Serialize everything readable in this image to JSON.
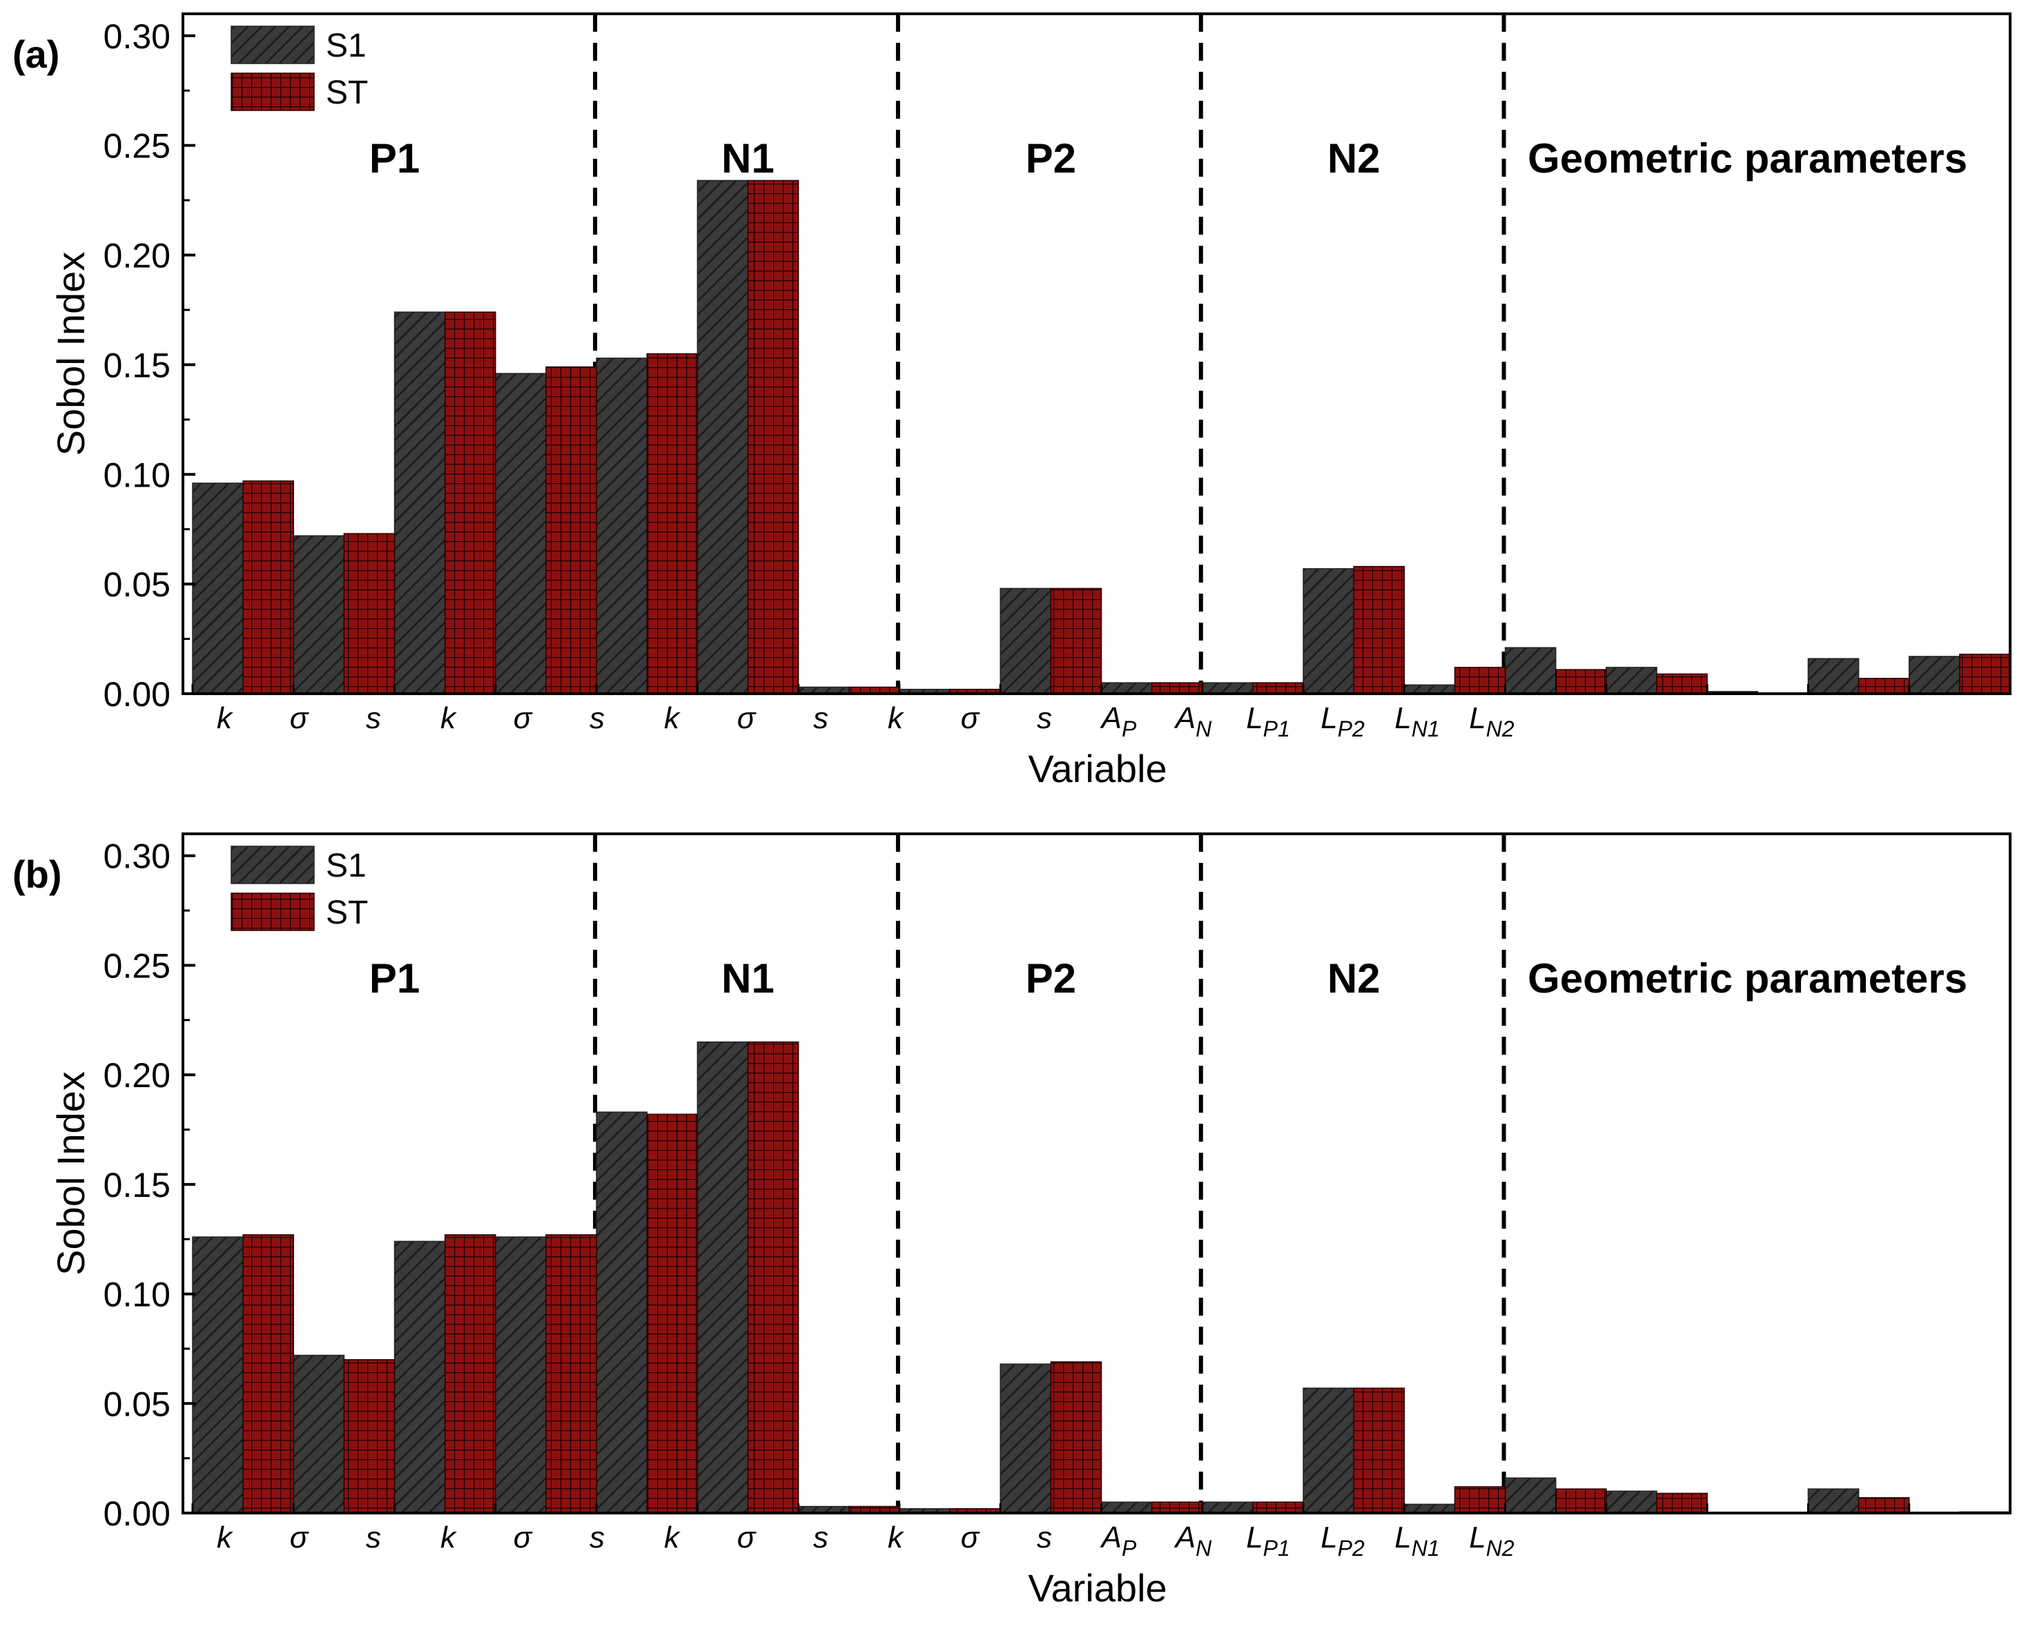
{
  "figure": {
    "legend": {
      "s1_label": "S1",
      "st_label": "ST"
    },
    "colors": {
      "s1": "#3a3a3a",
      "st": "#8c1010",
      "axis": "#000000"
    },
    "group_labels": [
      "P1",
      "N1",
      "P2",
      "N2",
      "Geometric parameters"
    ],
    "x_tick_labels": [
      {
        "main": "k",
        "sub": ""
      },
      {
        "main": "σ",
        "sub": ""
      },
      {
        "main": "s",
        "sub": ""
      },
      {
        "main": "k",
        "sub": ""
      },
      {
        "main": "σ",
        "sub": ""
      },
      {
        "main": "s",
        "sub": ""
      },
      {
        "main": "k",
        "sub": ""
      },
      {
        "main": "σ",
        "sub": ""
      },
      {
        "main": "s",
        "sub": ""
      },
      {
        "main": "k",
        "sub": ""
      },
      {
        "main": "σ",
        "sub": ""
      },
      {
        "main": "s",
        "sub": ""
      },
      {
        "main": "A",
        "sub": "P"
      },
      {
        "main": "A",
        "sub": "N"
      },
      {
        "main": "L",
        "sub": "P1"
      },
      {
        "main": "L",
        "sub": "P2"
      },
      {
        "main": "L",
        "sub": "N1"
      },
      {
        "main": "L",
        "sub": "N2"
      }
    ]
  },
  "chart_data": [
    {
      "type": "bar",
      "panel_label": "(a)",
      "xlabel": "Variable",
      "ylabel": "Sobol Index",
      "ylim": [
        0,
        0.31
      ],
      "yticks": [
        "0.00",
        "0.05",
        "0.10",
        "0.15",
        "0.20",
        "0.25",
        "0.30"
      ],
      "series": [
        {
          "name": "S1",
          "values": [
            0.096,
            0.072,
            0.174,
            0.146,
            0.153,
            0.234,
            0.003,
            0.002,
            0.048,
            0.005,
            0.005,
            0.057,
            0.004,
            0.021,
            0.012,
            0.001,
            0.016,
            0.017
          ]
        },
        {
          "name": "ST",
          "values": [
            0.097,
            0.073,
            0.174,
            0.149,
            0.155,
            0.234,
            0.003,
            0.002,
            0.048,
            0.005,
            0.005,
            0.058,
            0.012,
            0.011,
            0.009,
            0.0,
            0.007,
            0.018
          ]
        }
      ]
    },
    {
      "type": "bar",
      "panel_label": "(b)",
      "xlabel": "Variable",
      "ylabel": "Sobol Index",
      "ylim": [
        0,
        0.31
      ],
      "yticks": [
        "0.00",
        "0.05",
        "0.10",
        "0.15",
        "0.20",
        "0.25",
        "0.30"
      ],
      "series": [
        {
          "name": "S1",
          "values": [
            0.126,
            0.072,
            0.124,
            0.126,
            0.183,
            0.215,
            0.003,
            0.002,
            0.068,
            0.005,
            0.005,
            0.057,
            0.004,
            0.016,
            0.01,
            0.0,
            0.011,
            0.0
          ]
        },
        {
          "name": "ST",
          "values": [
            0.127,
            0.07,
            0.127,
            0.127,
            0.182,
            0.215,
            0.003,
            0.002,
            0.069,
            0.005,
            0.005,
            0.057,
            0.012,
            0.011,
            0.009,
            0.0,
            0.007,
            0.0005
          ]
        }
      ]
    }
  ]
}
